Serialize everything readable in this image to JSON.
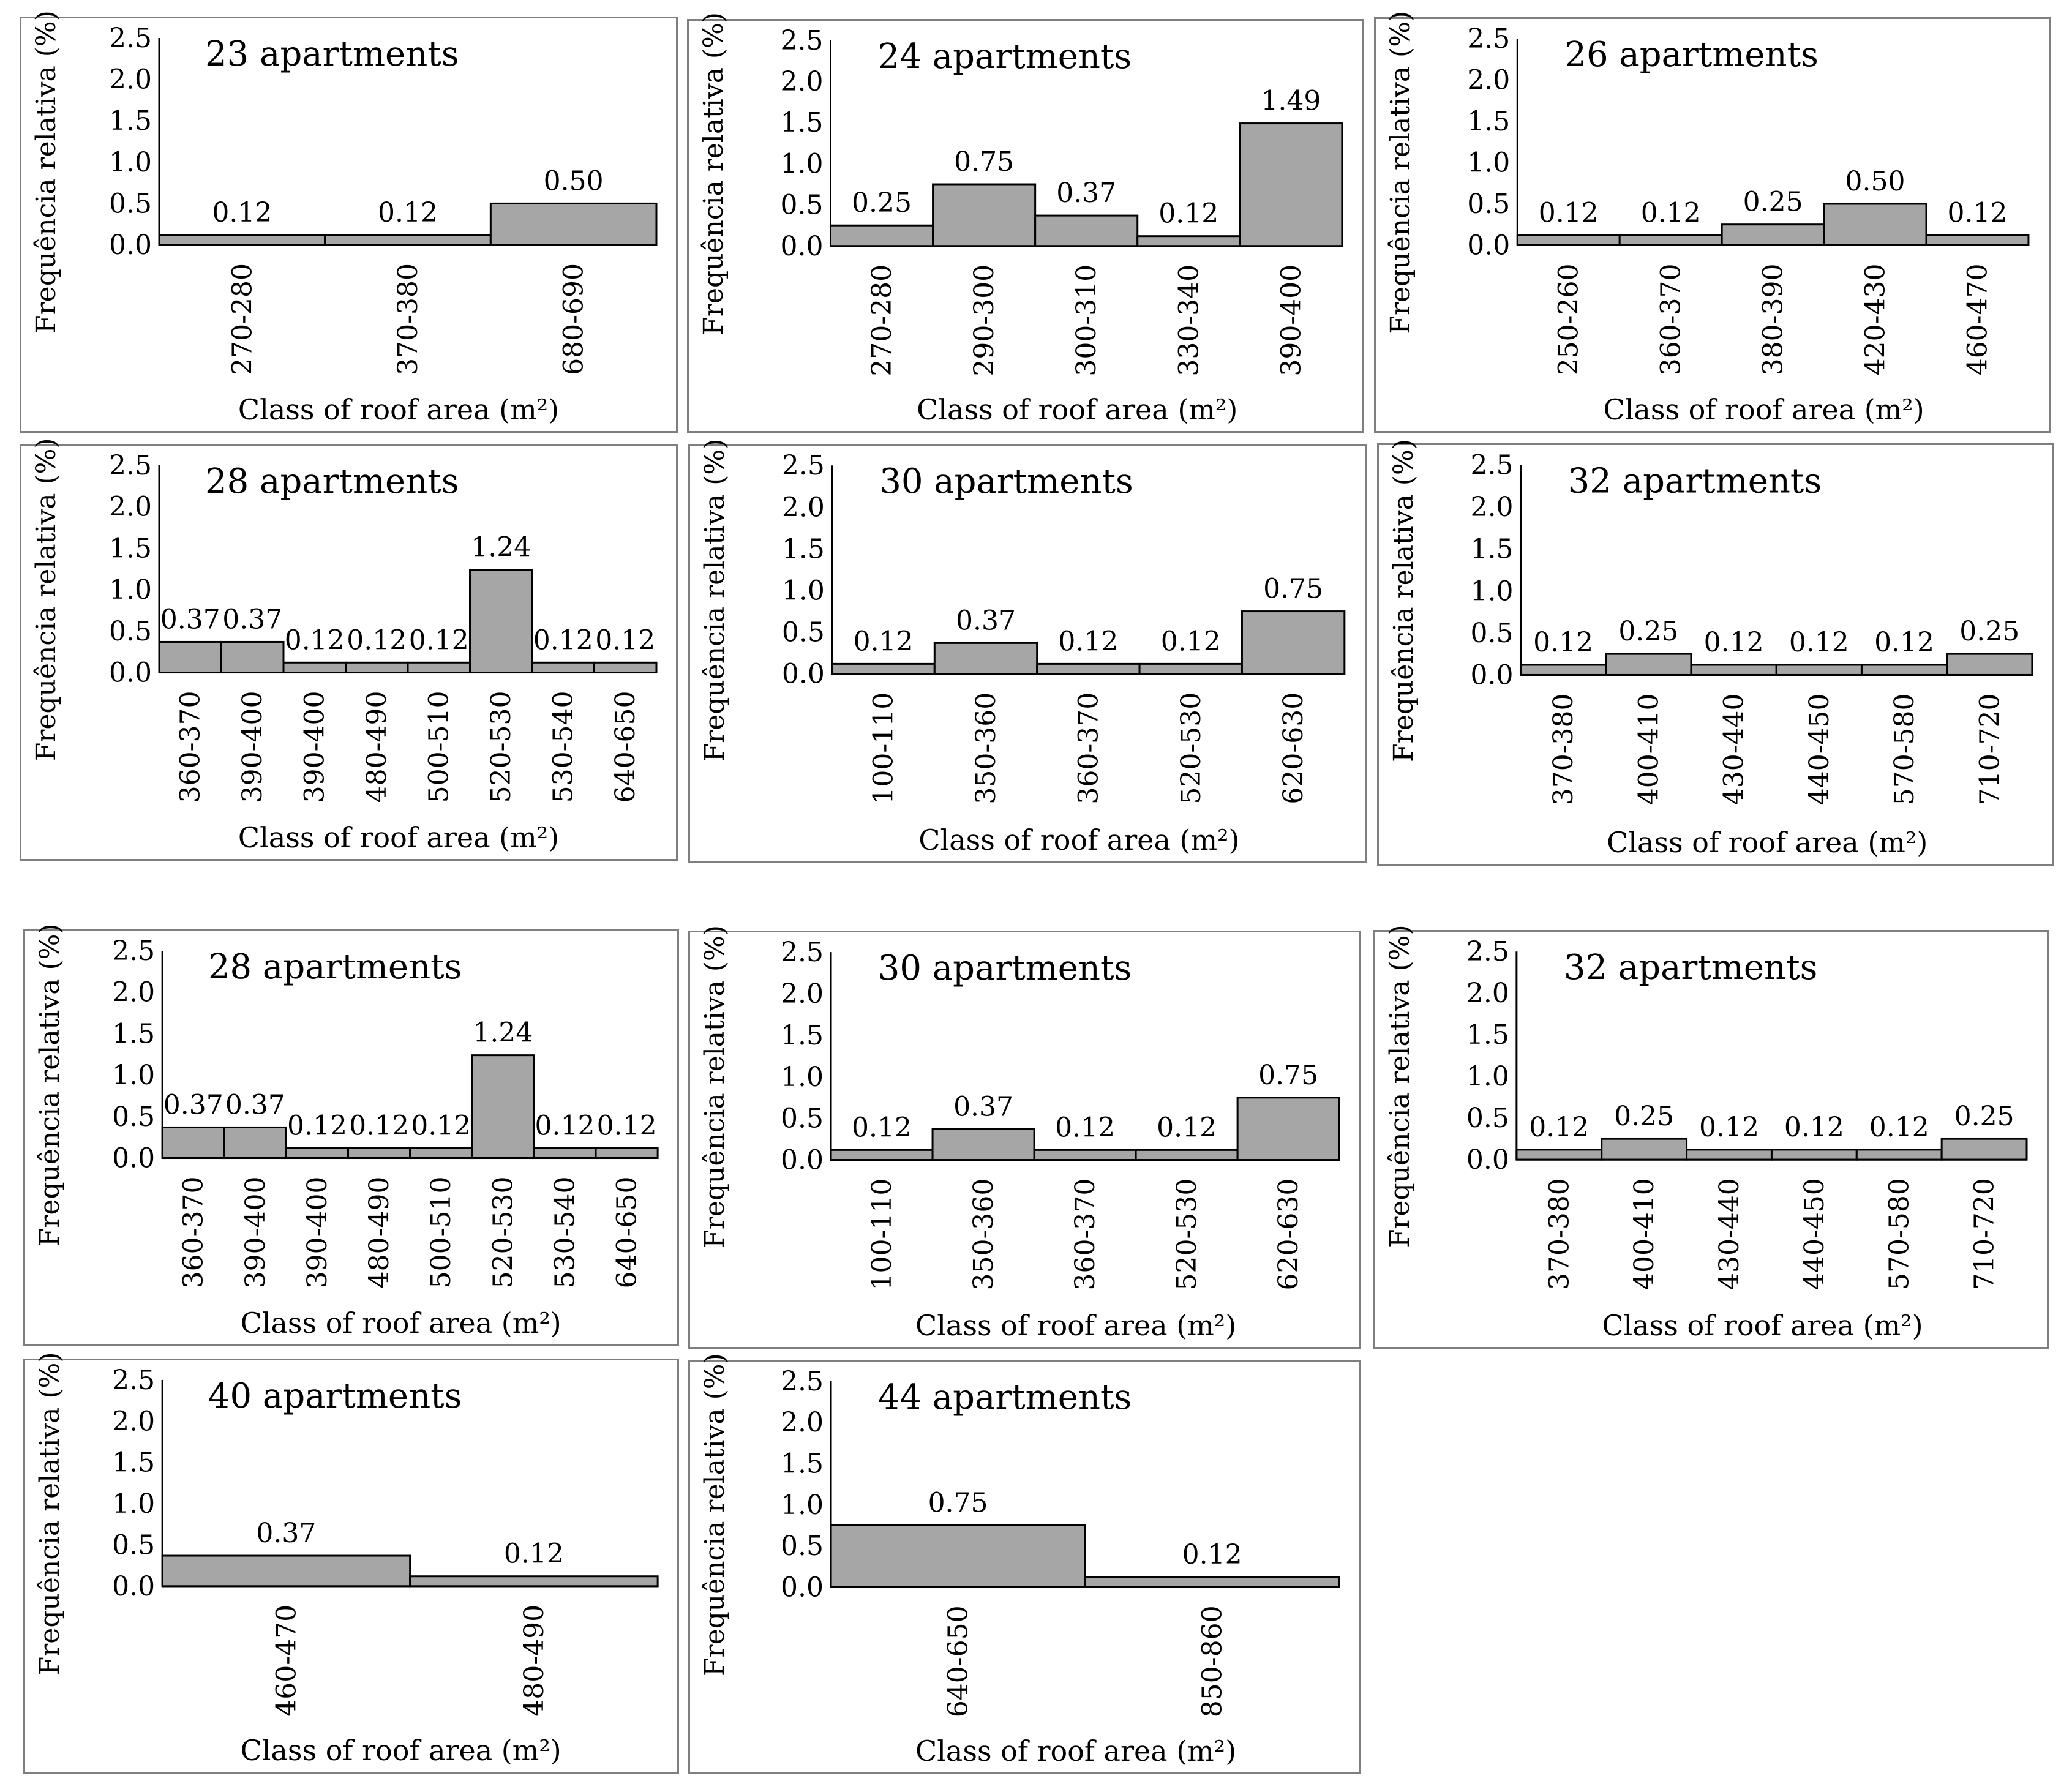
{
  "colors": {
    "bar_fill": "#a6a6a6",
    "bar_stroke": "#000000",
    "panel_border": "#7f7f7f"
  },
  "chart_data": [
    {
      "type": "bar",
      "title": "23 apartments",
      "xlabel": "Class of roof area (m²)",
      "ylabel": "Frequência relativa (%)",
      "ylim": [
        0,
        2.5
      ],
      "yticks": [
        "0.0",
        "0.5",
        "1.0",
        "1.5",
        "2.0",
        "2.5"
      ],
      "categories": [
        "270-280",
        "370-380",
        "680-690"
      ],
      "values": [
        0.12,
        0.12,
        0.5
      ],
      "labels": [
        "0.12",
        "0.12",
        "0.50"
      ]
    },
    {
      "type": "bar",
      "title": "24 apartments",
      "xlabel": "Class of roof area (m²)",
      "ylabel": "Frequência relativa (%)",
      "ylim": [
        0,
        2.5
      ],
      "yticks": [
        "0.0",
        "0.5",
        "1.0",
        "1.5",
        "2.0",
        "2.5"
      ],
      "categories": [
        "270-280",
        "290-300",
        "300-310",
        "330-340",
        "390-400"
      ],
      "values": [
        0.25,
        0.75,
        0.37,
        0.12,
        1.49
      ],
      "labels": [
        "0.25",
        "0.75",
        "0.37",
        "0.12",
        "1.49"
      ]
    },
    {
      "type": "bar",
      "title": "26 apartments",
      "xlabel": "Class of roof area (m²)",
      "ylabel": "Frequência relativa (%)",
      "ylim": [
        0,
        2.5
      ],
      "yticks": [
        "0.0",
        "0.5",
        "1.0",
        "1.5",
        "2.0",
        "2.5"
      ],
      "categories": [
        "250-260",
        "360-370",
        "380-390",
        "420-430",
        "460-470"
      ],
      "values": [
        0.12,
        0.12,
        0.25,
        0.5,
        0.12
      ],
      "labels": [
        "0.12",
        "0.12",
        "0.25",
        "0.50",
        "0.12"
      ]
    },
    {
      "type": "bar",
      "title": "28 apartments",
      "xlabel": "Class of roof area (m²)",
      "ylabel": "Frequência relativa (%)",
      "ylim": [
        0,
        2.5
      ],
      "yticks": [
        "0.0",
        "0.5",
        "1.0",
        "1.5",
        "2.0",
        "2.5"
      ],
      "categories": [
        "360-370",
        "390-400",
        "390-400",
        "480-490",
        "500-510",
        "520-530",
        "530-540",
        "640-650"
      ],
      "values": [
        0.37,
        0.37,
        0.12,
        0.12,
        0.12,
        1.24,
        0.12,
        0.12
      ],
      "labels": [
        "0.37",
        "0.37",
        "0.12",
        "0.12",
        "0.12",
        "1.24",
        "0.12",
        "0.12"
      ]
    },
    {
      "type": "bar",
      "title": "30 apartments",
      "xlabel": "Class of roof area (m²)",
      "ylabel": "Frequência relativa (%)",
      "ylim": [
        0,
        2.5
      ],
      "yticks": [
        "0.0",
        "0.5",
        "1.0",
        "1.5",
        "2.0",
        "2.5"
      ],
      "categories": [
        "100-110",
        "350-360",
        "360-370",
        "520-530",
        "620-630"
      ],
      "values": [
        0.12,
        0.37,
        0.12,
        0.12,
        0.75
      ],
      "labels": [
        "0.12",
        "0.37",
        "0.12",
        "0.12",
        "0.75"
      ]
    },
    {
      "type": "bar",
      "title": "32 apartments",
      "xlabel": "Class of roof area (m²)",
      "ylabel": "Frequência relativa (%)",
      "ylim": [
        0,
        2.5
      ],
      "yticks": [
        "0.0",
        "0.5",
        "1.0",
        "1.5",
        "2.0",
        "2.5"
      ],
      "categories": [
        "370-380",
        "400-410",
        "430-440",
        "440-450",
        "570-580",
        "710-720"
      ],
      "values": [
        0.12,
        0.25,
        0.12,
        0.12,
        0.12,
        0.25
      ],
      "labels": [
        "0.12",
        "0.25",
        "0.12",
        "0.12",
        "0.12",
        "0.25"
      ]
    },
    {
      "type": "bar",
      "title": "28 apartments",
      "xlabel": "Class of roof area (m²)",
      "ylabel": "Frequência relativa (%)",
      "ylim": [
        0,
        2.5
      ],
      "yticks": [
        "0.0",
        "0.5",
        "1.0",
        "1.5",
        "2.0",
        "2.5"
      ],
      "categories": [
        "360-370",
        "390-400",
        "390-400",
        "480-490",
        "500-510",
        "520-530",
        "530-540",
        "640-650"
      ],
      "values": [
        0.37,
        0.37,
        0.12,
        0.12,
        0.12,
        1.24,
        0.12,
        0.12
      ],
      "labels": [
        "0.37",
        "0.37",
        "0.12",
        "0.12",
        "0.12",
        "1.24",
        "0.12",
        "0.12"
      ]
    },
    {
      "type": "bar",
      "title": "30 apartments",
      "xlabel": "Class of roof area (m²)",
      "ylabel": "Frequência relativa (%)",
      "ylim": [
        0,
        2.5
      ],
      "yticks": [
        "0.0",
        "0.5",
        "1.0",
        "1.5",
        "2.0",
        "2.5"
      ],
      "categories": [
        "100-110",
        "350-360",
        "360-370",
        "520-530",
        "620-630"
      ],
      "values": [
        0.12,
        0.37,
        0.12,
        0.12,
        0.75
      ],
      "labels": [
        "0.12",
        "0.37",
        "0.12",
        "0.12",
        "0.75"
      ]
    },
    {
      "type": "bar",
      "title": "32 apartments",
      "xlabel": "Class of roof area (m²)",
      "ylabel": "Frequência relativa (%)",
      "ylim": [
        0,
        2.5
      ],
      "yticks": [
        "0.0",
        "0.5",
        "1.0",
        "1.5",
        "2.0",
        "2.5"
      ],
      "categories": [
        "370-380",
        "400-410",
        "430-440",
        "440-450",
        "570-580",
        "710-720"
      ],
      "values": [
        0.12,
        0.25,
        0.12,
        0.12,
        0.12,
        0.25
      ],
      "labels": [
        "0.12",
        "0.25",
        "0.12",
        "0.12",
        "0.12",
        "0.25"
      ]
    },
    {
      "type": "bar",
      "title": "40 apartments",
      "xlabel": "Class of roof area (m²)",
      "ylabel": "Frequência relativa (%)",
      "ylim": [
        0,
        2.5
      ],
      "yticks": [
        "0.0",
        "0.5",
        "1.0",
        "1.5",
        "2.0",
        "2.5"
      ],
      "categories": [
        "460-470",
        "480-490"
      ],
      "values": [
        0.37,
        0.12
      ],
      "labels": [
        "0.37",
        "0.12"
      ]
    },
    {
      "type": "bar",
      "title": "44 apartments",
      "xlabel": "Class of roof area (m²)",
      "ylabel": "Frequência relativa (%)",
      "ylim": [
        0,
        2.5
      ],
      "yticks": [
        "0.0",
        "0.5",
        "1.0",
        "1.5",
        "2.0",
        "2.5"
      ],
      "categories": [
        "640-650",
        "850-860"
      ],
      "values": [
        0.75,
        0.12
      ],
      "labels": [
        "0.75",
        "0.12"
      ]
    }
  ]
}
